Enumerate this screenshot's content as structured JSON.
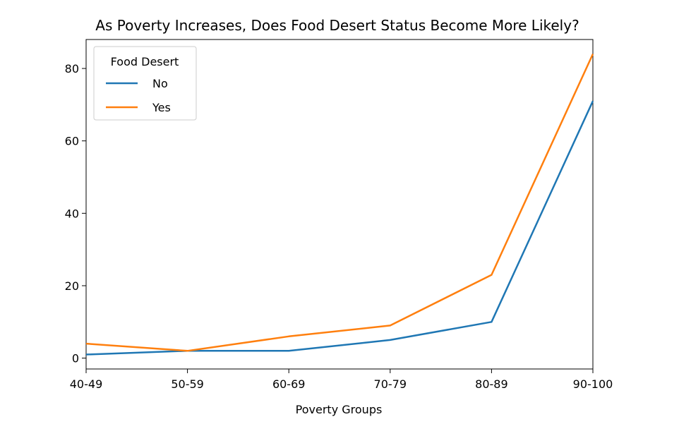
{
  "chart_data": {
    "type": "line",
    "title": "As Poverty Increases, Does Food Desert Status Become More Likely?",
    "xlabel": "Poverty Groups",
    "ylabel": "",
    "categories": [
      "40-49",
      "50-59",
      "60-69",
      "70-79",
      "80-89",
      "90-100"
    ],
    "y_ticks": [
      0,
      20,
      40,
      60,
      80
    ],
    "ylim": [
      -3,
      88
    ],
    "grid": false,
    "legend": {
      "title": "Food Desert",
      "placement": "top-left"
    },
    "series": [
      {
        "name": "No",
        "color": "#1f77b4",
        "values": [
          1,
          2,
          2,
          5,
          10,
          71
        ]
      },
      {
        "name": "Yes",
        "color": "#ff7f0e",
        "values": [
          4,
          2,
          6,
          9,
          23,
          84
        ]
      }
    ]
  }
}
